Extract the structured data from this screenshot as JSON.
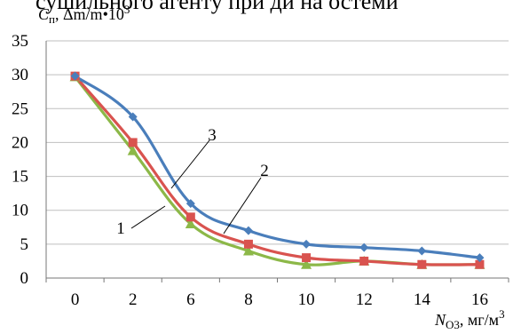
{
  "header_fragment": "сушильного агенту при ди на остеми",
  "chart_data": {
    "type": "line",
    "title": "",
    "ylabel": {
      "symbol": "C",
      "sub": "п",
      "rest": ", Δm/m•10",
      "sup": "3"
    },
    "xlabel": {
      "symbol": "N",
      "sub": "O3",
      "rest": ", мг/м",
      "sup": "3"
    },
    "categories": [
      "0",
      "2",
      "6",
      "8",
      "10",
      "12",
      "14",
      "16"
    ],
    "ylim": [
      0,
      35
    ],
    "yticks": [
      "0",
      "5",
      "10",
      "15",
      "20",
      "25",
      "30",
      "35"
    ],
    "grid": true,
    "curve_labels": [
      "1",
      "2",
      "3"
    ],
    "series": [
      {
        "color": "#4a7ebb",
        "marker": "diamond",
        "values": [
          29.8,
          23.8,
          11.0,
          7.0,
          5.0,
          4.5,
          4.0,
          3.0
        ]
      },
      {
        "color": "#d9534f",
        "marker": "square",
        "values": [
          29.8,
          20.0,
          9.0,
          5.0,
          3.0,
          2.5,
          2.0,
          2.0
        ]
      },
      {
        "color": "#8cb848",
        "marker": "triangle",
        "values": [
          29.7,
          18.8,
          8.0,
          4.0,
          2.0,
          2.5,
          2.0,
          2.0
        ]
      }
    ]
  }
}
